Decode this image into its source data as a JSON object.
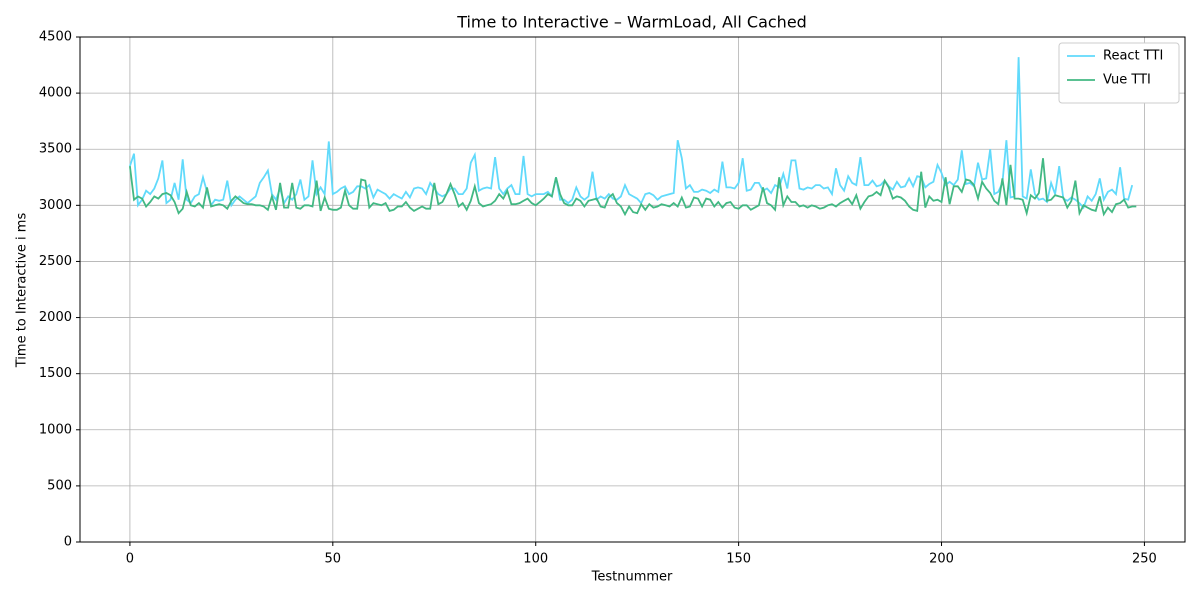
{
  "chart_data": {
    "type": "line",
    "title": "Time to Interactive  – WarmLoad, All Cached",
    "x_label": "Testnummer",
    "y_label": "Time to Interactive  i ms",
    "xlim": [
      -12.3,
      260
    ],
    "ylim": [
      0,
      4500
    ],
    "xticks": [
      0,
      50,
      100,
      150,
      200,
      250
    ],
    "yticks": [
      0,
      500,
      1000,
      1500,
      2000,
      2500,
      3000,
      3500,
      4000,
      4500
    ],
    "grid": true,
    "legend": "upper right",
    "x": [
      0,
      1,
      2,
      3,
      4,
      5,
      6,
      7,
      8,
      9,
      10,
      11,
      12,
      13,
      14,
      15,
      16,
      17,
      18,
      19,
      20,
      21,
      22,
      23,
      24,
      25,
      26,
      27,
      28,
      29,
      30,
      31,
      32,
      33,
      34,
      35,
      36,
      37,
      38,
      39,
      40,
      41,
      42,
      43,
      44,
      45,
      46,
      47,
      48,
      49,
      50,
      51,
      52,
      53,
      54,
      55,
      56,
      57,
      58,
      59,
      60,
      61,
      62,
      63,
      64,
      65,
      66,
      67,
      68,
      69,
      70,
      71,
      72,
      73,
      74,
      75,
      76,
      77,
      78,
      79,
      80,
      81,
      82,
      83,
      84,
      85,
      86,
      87,
      88,
      89,
      90,
      91,
      92,
      93,
      94,
      95,
      96,
      97,
      98,
      99,
      100,
      101,
      102,
      103,
      104,
      105,
      106,
      107,
      108,
      109,
      110,
      111,
      112,
      113,
      114,
      115,
      116,
      117,
      118,
      119,
      120,
      121,
      122,
      123,
      124,
      125,
      126,
      127,
      128,
      129,
      130,
      131,
      132,
      133,
      134,
      135,
      136,
      137,
      138,
      139,
      140,
      141,
      142,
      143,
      144,
      145,
      146,
      147,
      148,
      149,
      150,
      151,
      152,
      153,
      154,
      155,
      156,
      157,
      158,
      159,
      160,
      161,
      162,
      163,
      164,
      165,
      166,
      167,
      168,
      169,
      170,
      171,
      172,
      173,
      174,
      175,
      176,
      177,
      178,
      179,
      180,
      181,
      182,
      183,
      184,
      185,
      186,
      187,
      188,
      189,
      190,
      191,
      192,
      193,
      194,
      195,
      196,
      197,
      198,
      199,
      200,
      201,
      202,
      203,
      204,
      205,
      206,
      207,
      208,
      209,
      210,
      211,
      212,
      213,
      214,
      215,
      216,
      217,
      218,
      219,
      220,
      221,
      222,
      223,
      224,
      225,
      226,
      227,
      228,
      229,
      230,
      231,
      232,
      233,
      234,
      235,
      236,
      237,
      238,
      239,
      240,
      241,
      242,
      243,
      244,
      245,
      246,
      247,
      248
    ],
    "series": [
      {
        "name": "React TTI",
        "color": "#61dafb",
        "values": [
          3350,
          3460,
          3000,
          3050,
          3130,
          3100,
          3150,
          3240,
          3400,
          3020,
          3050,
          3200,
          3050,
          3410,
          3050,
          3020,
          3080,
          3100,
          3250,
          3120,
          3000,
          3050,
          3040,
          3050,
          3220,
          3000,
          3050,
          3080,
          3050,
          3020,
          3050,
          3080,
          3200,
          3250,
          3310,
          3100,
          3050,
          3150,
          3020,
          3080,
          3050,
          3100,
          3230,
          3050,
          3080,
          3400,
          3100,
          3160,
          3100,
          3570,
          3100,
          3120,
          3150,
          3170,
          3100,
          3120,
          3170,
          3170,
          3150,
          3180,
          3070,
          3140,
          3120,
          3100,
          3060,
          3100,
          3080,
          3060,
          3120,
          3070,
          3150,
          3160,
          3150,
          3100,
          3200,
          3150,
          3100,
          3080,
          3100,
          3150,
          3150,
          3100,
          3100,
          3150,
          3380,
          3450,
          3130,
          3150,
          3160,
          3150,
          3430,
          3150,
          3100,
          3150,
          3180,
          3100,
          3100,
          3440,
          3100,
          3080,
          3100,
          3100,
          3100,
          3120,
          3080,
          3250,
          3050,
          3050,
          3020,
          3050,
          3160,
          3080,
          3050,
          3080,
          3300,
          3050,
          3080,
          3060,
          3100,
          3060,
          3050,
          3080,
          3180,
          3100,
          3080,
          3060,
          3020,
          3100,
          3110,
          3090,
          3050,
          3080,
          3090,
          3100,
          3110,
          3580,
          3420,
          3150,
          3180,
          3120,
          3120,
          3140,
          3130,
          3110,
          3140,
          3120,
          3390,
          3160,
          3160,
          3150,
          3200,
          3420,
          3130,
          3140,
          3200,
          3200,
          3130,
          3150,
          3110,
          3180,
          3160,
          3280,
          3150,
          3400,
          3400,
          3150,
          3140,
          3160,
          3150,
          3180,
          3180,
          3150,
          3160,
          3100,
          3330,
          3180,
          3130,
          3260,
          3200,
          3180,
          3430,
          3180,
          3180,
          3220,
          3170,
          3180,
          3220,
          3170,
          3140,
          3210,
          3160,
          3170,
          3240,
          3170,
          3260,
          3250,
          3160,
          3190,
          3210,
          3360,
          3290,
          3180,
          3210,
          3180,
          3230,
          3490,
          3190,
          3200,
          3170,
          3380,
          3230,
          3240,
          3500,
          3100,
          3120,
          3200,
          3580,
          3070,
          3080,
          4320,
          3080,
          3060,
          3320,
          3100,
          3050,
          3060,
          3030,
          3200,
          3100,
          3350,
          3060,
          3040,
          3070,
          3050,
          3020,
          2980,
          3080,
          3040,
          3100,
          3240,
          3050,
          3120,
          3140,
          3100,
          3340,
          3060,
          3050,
          3180,
          null
        ]
      },
      {
        "name": "Vue TTI",
        "color": "#42b883",
        "values": [
          3350,
          3050,
          3080,
          3060,
          2990,
          3030,
          3080,
          3060,
          3100,
          3110,
          3090,
          3030,
          2930,
          2970,
          3120,
          3000,
          2990,
          3020,
          2980,
          3160,
          2990,
          3000,
          3010,
          3000,
          2970,
          3040,
          3080,
          3050,
          3020,
          3010,
          3010,
          3000,
          3000,
          2990,
          2960,
          3080,
          2960,
          3200,
          2980,
          2980,
          3200,
          2980,
          2970,
          3000,
          3000,
          2990,
          3220,
          2950,
          3070,
          2970,
          2960,
          2960,
          2980,
          3130,
          3000,
          2970,
          2970,
          3230,
          3220,
          2980,
          3020,
          3010,
          3000,
          3020,
          2950,
          2960,
          2990,
          2990,
          3030,
          2980,
          2950,
          2970,
          2990,
          2970,
          2970,
          3200,
          3010,
          3030,
          3100,
          3190,
          3100,
          2990,
          3020,
          2960,
          3040,
          3170,
          3020,
          2990,
          3000,
          3010,
          3040,
          3100,
          3060,
          3130,
          3010,
          3010,
          3020,
          3040,
          3060,
          3020,
          3000,
          3030,
          3060,
          3100,
          3080,
          3250,
          3100,
          3020,
          3000,
          3000,
          3060,
          3040,
          2990,
          3040,
          3050,
          3060,
          2990,
          2980,
          3070,
          3100,
          3020,
          2990,
          2920,
          2990,
          2940,
          2930,
          3010,
          2960,
          3010,
          2980,
          2990,
          3010,
          3000,
          2990,
          3020,
          2990,
          3070,
          2980,
          2990,
          3070,
          3060,
          2990,
          3060,
          3050,
          2990,
          3030,
          2980,
          3020,
          3030,
          2980,
          2970,
          3000,
          3000,
          2960,
          2980,
          3000,
          3160,
          3020,
          3000,
          2960,
          3250,
          3000,
          3080,
          3030,
          3030,
          2990,
          3000,
          2980,
          3000,
          2990,
          2970,
          2980,
          3000,
          3010,
          2990,
          3020,
          3040,
          3060,
          3010,
          3090,
          2970,
          3030,
          3080,
          3090,
          3120,
          3090,
          3220,
          3160,
          3060,
          3080,
          3070,
          3040,
          2990,
          2960,
          2950,
          3300,
          2980,
          3080,
          3040,
          3050,
          3030,
          3250,
          3010,
          3170,
          3170,
          3120,
          3230,
          3220,
          3180,
          3060,
          3210,
          3150,
          3110,
          3040,
          3010,
          3240,
          3000,
          3360,
          3060,
          3060,
          3050,
          2930,
          3090,
          3060,
          3110,
          3420,
          3040,
          3050,
          3090,
          3080,
          3070,
          2980,
          3040,
          3220,
          2930,
          3000,
          2980,
          2960,
          2950,
          3080,
          2920,
          2980,
          2940,
          3010,
          3020,
          3050,
          2980,
          2990,
          2990
        ]
      }
    ]
  }
}
